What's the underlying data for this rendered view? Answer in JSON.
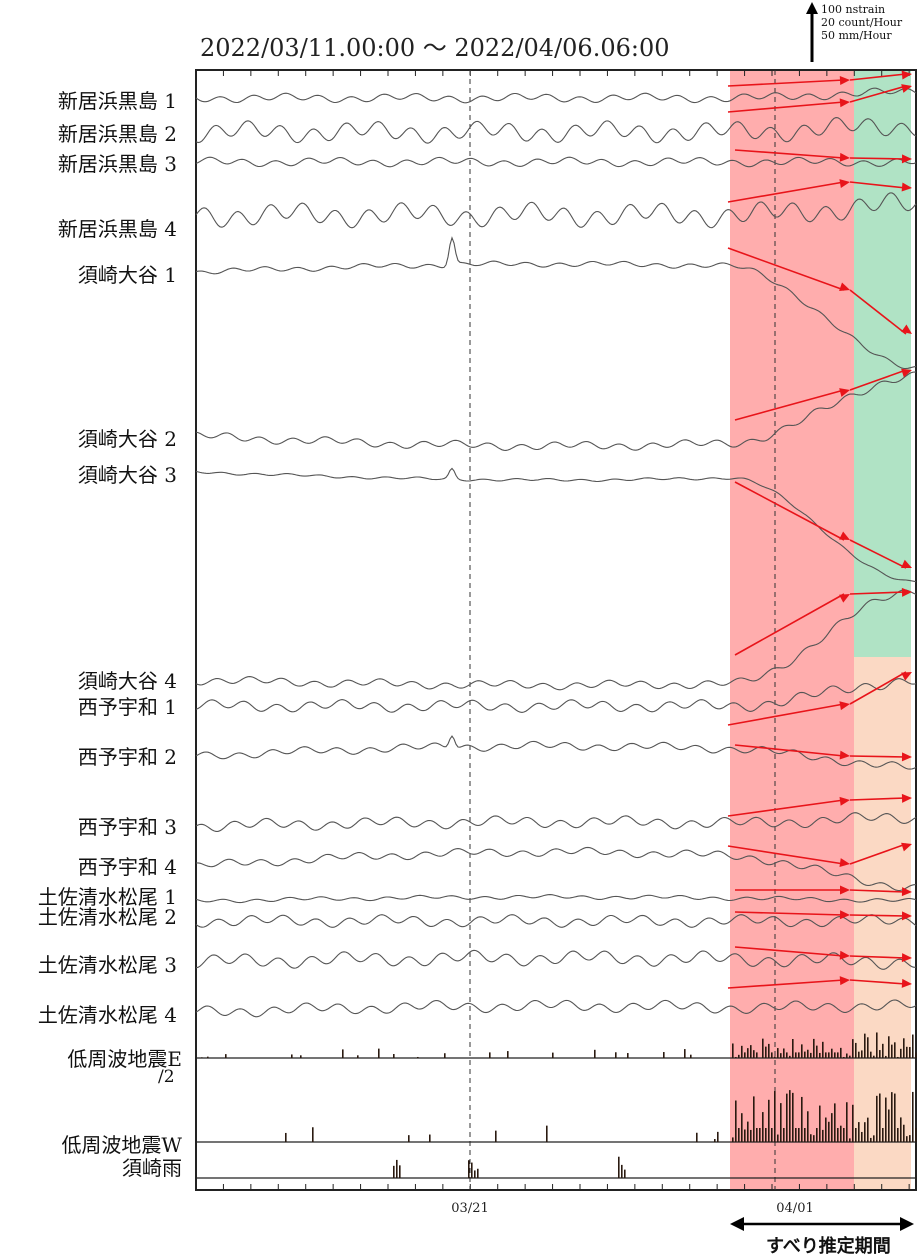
{
  "chart_data": {
    "type": "line",
    "title": "2022/03/11.00:00 〜 2022/04/06.06:00",
    "scale": [
      "100 nstrain",
      "20 count/Hour",
      "50 mm/Hour"
    ],
    "x_ticks": [
      "03/21",
      "04/01"
    ],
    "period_label": "すべり推定期間",
    "low_freq_e_scale": "/2",
    "colors": {
      "trace": "#555555",
      "arrow": "#e8141a",
      "red_band": "#ffadad",
      "green_band": "#b0e3c5",
      "peach_band": "#fbd9c4",
      "bar": "#2a1a10"
    },
    "series": [
      {
        "name": "新居浜黒島 1",
        "kind": "strain",
        "amp": 3,
        "trend": 0,
        "end_trend": -6,
        "spike": 0
      },
      {
        "name": "新居浜黒島 2",
        "kind": "strain",
        "amp": 7,
        "trend": 0,
        "end_trend": -6,
        "spike": 0
      },
      {
        "name": "新居浜黒島 3",
        "kind": "strain",
        "amp": 3,
        "trend": 0,
        "end_trend": 0,
        "spike": 0
      },
      {
        "name": "新居浜黒島 4",
        "kind": "strain",
        "amp": 8,
        "trend": 0,
        "end_trend": -10,
        "spike": 0
      },
      {
        "name": "須崎大谷 1",
        "kind": "strain",
        "amp": 2,
        "trend": -8,
        "end_trend": 95,
        "spike": 28
      },
      {
        "name": "須崎大谷 2",
        "kind": "strain",
        "amp": 3,
        "trend": 10,
        "end_trend": -60,
        "spike": 0
      },
      {
        "name": "須崎大谷 3",
        "kind": "strain",
        "amp": 1,
        "trend": 8,
        "end_trend": 110,
        "spike": 10
      },
      {
        "name": "須崎大谷 4",
        "kind": "strain",
        "amp": 3,
        "trend": 5,
        "end_trend": -90,
        "spike": 0
      },
      {
        "name": "西予宇和 1",
        "kind": "strain",
        "amp": 4,
        "trend": 0,
        "end_trend": -25,
        "spike": 0
      },
      {
        "name": "西予宇和 2",
        "kind": "strain",
        "amp": 3,
        "trend": -10,
        "end_trend": 12,
        "spike": 14
      },
      {
        "name": "西予宇和 3",
        "kind": "strain",
        "amp": 4,
        "trend": -4,
        "end_trend": -8,
        "spike": 0
      },
      {
        "name": "西予宇和 4",
        "kind": "strain",
        "amp": 3,
        "trend": -14,
        "end_trend": 22,
        "spike": 0
      },
      {
        "name": "土佐清水松尾 1",
        "kind": "strain",
        "amp": 1.5,
        "trend": -4,
        "end_trend": 0,
        "spike": 0
      },
      {
        "name": "土佐清水松尾 2",
        "kind": "strain",
        "amp": 4,
        "trend": 0,
        "end_trend": 0,
        "spike": 0
      },
      {
        "name": "土佐清水松尾 3",
        "kind": "strain",
        "amp": 5,
        "trend": -4,
        "end_trend": 0,
        "spike": 0
      },
      {
        "name": "土佐清水松尾 4",
        "kind": "strain",
        "amp": 4,
        "trend": -6,
        "end_trend": -6,
        "spike": 0
      },
      {
        "name": "低周波地震E",
        "kind": "count"
      },
      {
        "name": "低周波地震W",
        "kind": "count"
      },
      {
        "name": "須崎雨",
        "kind": "rain"
      }
    ]
  }
}
